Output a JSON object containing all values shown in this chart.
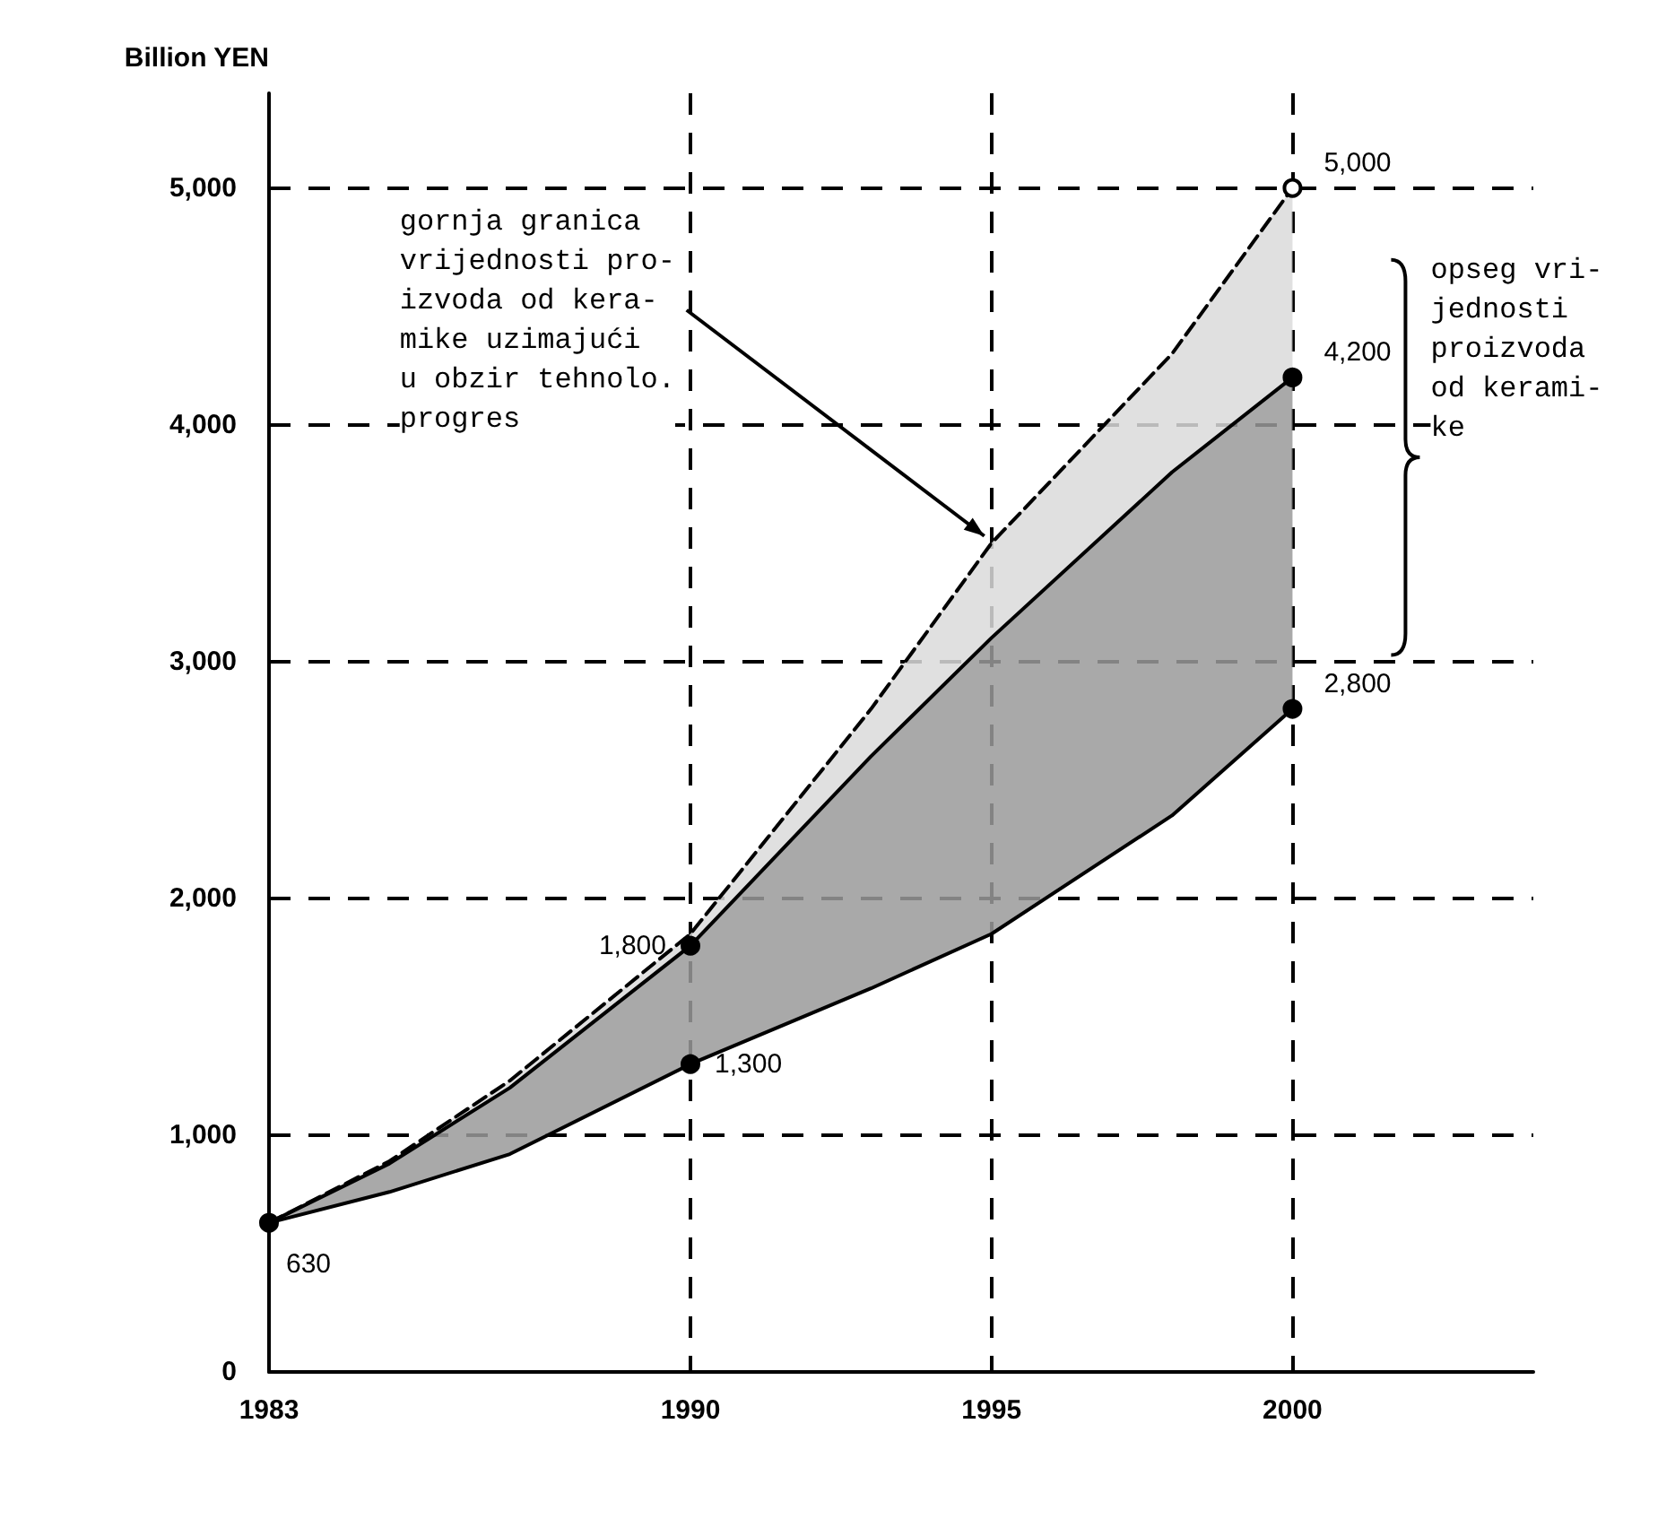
{
  "chart_data": {
    "type": "line",
    "ylabel": "Billion YEN",
    "x": [
      1983,
      1985,
      1987,
      1990,
      1993,
      1995,
      1998,
      2000
    ],
    "xlim": [
      1983,
      2004
    ],
    "xticks": [
      1983,
      1990,
      1995,
      2000
    ],
    "ylim": [
      0,
      5400
    ],
    "yticks": [
      {
        "value": 0,
        "label": "0"
      },
      {
        "value": 1000,
        "label": "1,000"
      },
      {
        "value": 2000,
        "label": "2,000"
      },
      {
        "value": 3000,
        "label": "3,000"
      },
      {
        "value": 4000,
        "label": "4,000"
      },
      {
        "value": 5000,
        "label": "5,000"
      }
    ],
    "grid": true,
    "series": [
      {
        "color": "#000000",
        "line_style": "solid",
        "values": [
          630,
          760,
          920,
          1300,
          1620,
          1850,
          2350,
          2800
        ],
        "value_labels": [
          "630",
          null,
          null,
          "1,300",
          null,
          null,
          null,
          "2,800"
        ]
      },
      {
        "color": "#000000",
        "line_style": "solid",
        "values": [
          630,
          880,
          1200,
          1800,
          2600,
          3100,
          3800,
          4200
        ],
        "value_labels": [
          null,
          null,
          null,
          "1,800",
          null,
          null,
          null,
          "4,200"
        ],
        "lower": [
          630,
          760,
          920,
          1300,
          1620,
          1850,
          2350,
          2800
        ],
        "upper": [
          630,
          880,
          1200,
          1800,
          2600,
          3100,
          3800,
          4200
        ]
      },
      {
        "color": "#000000",
        "line_style": "dashed",
        "values": [
          630,
          890,
          1230,
          1850,
          2800,
          3500,
          4300,
          5000
        ],
        "value_labels": [
          null,
          null,
          null,
          null,
          null,
          null,
          null,
          "5,000"
        ],
        "lower": [
          630,
          880,
          1200,
          1800,
          2600,
          3100,
          3800,
          4200
        ],
        "upper": [
          630,
          890,
          1230,
          1850,
          2800,
          3500,
          4300,
          5000
        ]
      }
    ],
    "annotations": [
      {
        "text": "gornja granica\nvrijednosti pro-\nizvoda od kera-\nmike uzimajući\nu obzir tehnolo.\nprogres",
        "x": 1995,
        "y": 3500
      },
      "opseg vri-\njednosti\nproizvoda\nod kerami-\nke"
    ]
  }
}
